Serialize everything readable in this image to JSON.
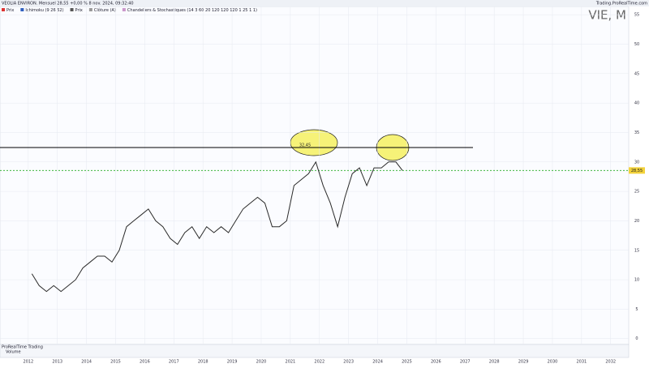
{
  "chart_data": {
    "type": "line",
    "title": "VEOLIA ENVIRON. Mensuel 28,55 +0,00 % 8 nov. 2024, 09:32:40",
    "source": "Trading.ProRealTime.com",
    "symbol": "VIE, M",
    "indicators": [
      "Prix",
      "Ichimoku (9 26 52)",
      "Prix",
      "Clôture (A)",
      "Chandeliers & Stochastiques (14 3 60 20 120 120 120 1 25 1 1)"
    ],
    "panel_title": "ProRealTime Trading",
    "volume_label": "Volume",
    "x": [
      2012.125,
      2012.375,
      2012.625,
      2012.875,
      2013.125,
      2013.375,
      2013.625,
      2013.875,
      2014.125,
      2014.375,
      2014.625,
      2014.875,
      2015.125,
      2015.375,
      2015.625,
      2015.875,
      2016.125,
      2016.375,
      2016.625,
      2016.875,
      2017.125,
      2017.375,
      2017.625,
      2017.875,
      2018.125,
      2018.375,
      2018.625,
      2018.875,
      2019.125,
      2019.375,
      2019.625,
      2019.875,
      2020.125,
      2020.375,
      2020.625,
      2020.875,
      2021.125,
      2021.375,
      2021.625,
      2021.875,
      2022.125,
      2022.375,
      2022.625,
      2022.875,
      2023.125,
      2023.375,
      2023.625,
      2023.875,
      2024.125,
      2024.375,
      2024.625,
      2024.85
    ],
    "series": [
      {
        "name": "Prix",
        "color": "#2b2b2b",
        "values": [
          11,
          9,
          8,
          9,
          8,
          9,
          10,
          12,
          13,
          14,
          14,
          13,
          15,
          19,
          20,
          21,
          22,
          20,
          19,
          17,
          16,
          18,
          19,
          17,
          19,
          18,
          19,
          18,
          20,
          22,
          23,
          24,
          23,
          19,
          19,
          20,
          26,
          27,
          28,
          30,
          26,
          23,
          19,
          24,
          28,
          29,
          26,
          29,
          29,
          30,
          30,
          28.55
        ]
      }
    ],
    "hlines": [
      {
        "value": 32.45,
        "label": "32,45",
        "color": "#000000"
      }
    ],
    "last_price": {
      "value": 28.55,
      "label": "28,55",
      "color": "#22aa22"
    },
    "xlim": [
      2011.03,
      2032.62
    ],
    "xticks": [
      2012,
      2013,
      2014,
      2015,
      2016,
      2017,
      2018,
      2019,
      2020,
      2021,
      2022,
      2023,
      2024,
      2025,
      2026,
      2027,
      2028,
      2029,
      2030,
      2031,
      2032
    ],
    "ylim": [
      -1,
      56.4
    ],
    "yticks": [
      0,
      5,
      10,
      15,
      20,
      25,
      30,
      35,
      40,
      45,
      50,
      55
    ],
    "grid": true
  }
}
